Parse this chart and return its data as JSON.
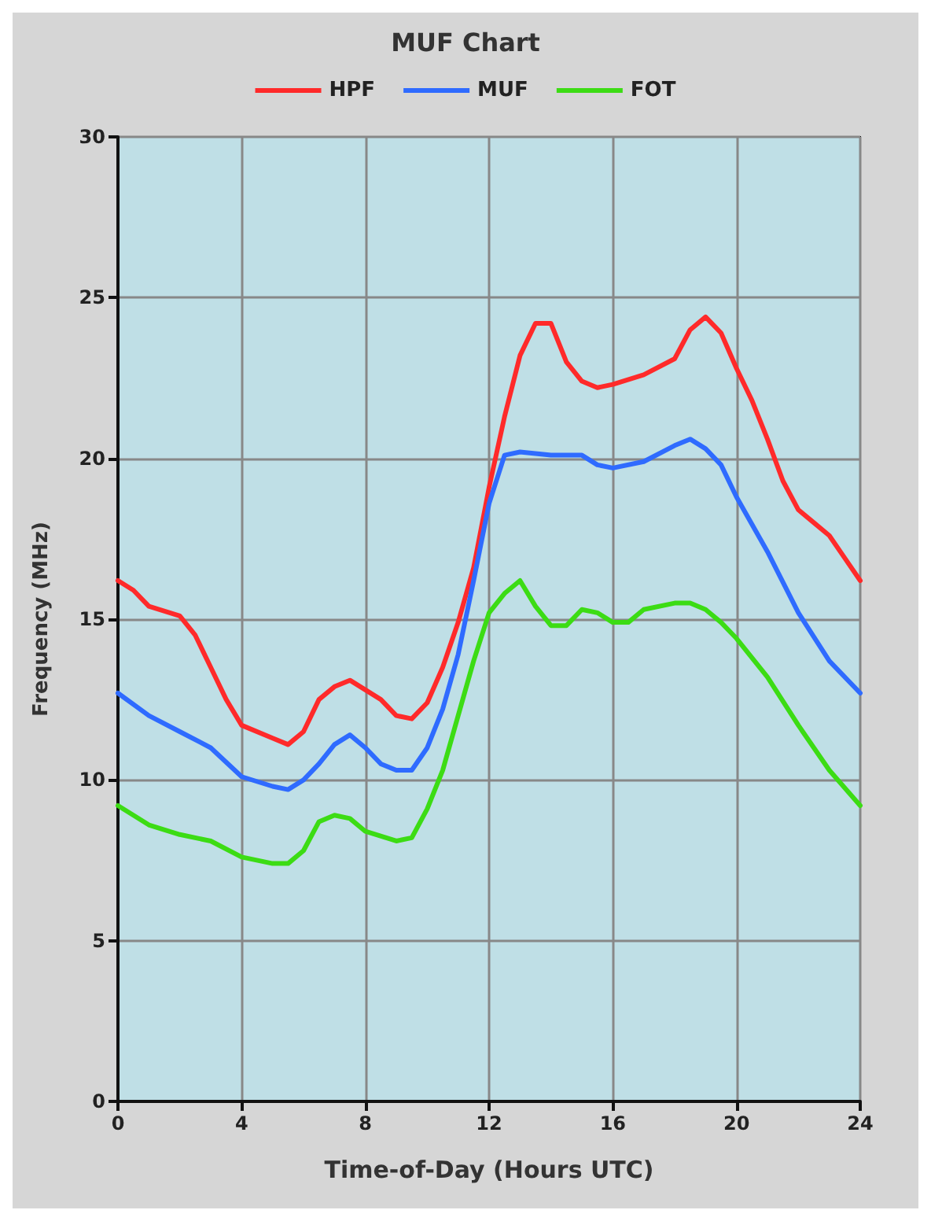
{
  "chart_data": {
    "type": "line",
    "title": "MUF Chart",
    "xlabel": "Time-of-Day (Hours UTC)",
    "ylabel": "Frequency (MHz)",
    "xlim": [
      0,
      24
    ],
    "xticks": [
      0,
      4,
      8,
      12,
      16,
      20,
      24
    ],
    "ylim": [
      0,
      30
    ],
    "yticks": [
      0,
      5,
      10,
      15,
      20,
      25,
      30
    ],
    "grid": true,
    "legend": "top",
    "marker": "none",
    "line_style": "solid",
    "series": [
      {
        "name": "HPF",
        "color": "#ff2a2a",
        "x": [
          0,
          0.5,
          1,
          2,
          2.5,
          3,
          3.5,
          4,
          5,
          5.5,
          6,
          6.5,
          7,
          7.5,
          8,
          8.5,
          9,
          9.5,
          10,
          10.5,
          11,
          11.5,
          12,
          12.5,
          13,
          13.5,
          14,
          14.5,
          15,
          15.5,
          16,
          17,
          18,
          18.5,
          19,
          19.5,
          20,
          20.5,
          21,
          21.5,
          22,
          22.5,
          23,
          23.5,
          24
        ],
        "values": [
          16.2,
          15.9,
          15.4,
          15.1,
          14.5,
          13.5,
          12.5,
          11.7,
          11.3,
          11.1,
          11.5,
          12.5,
          12.9,
          13.1,
          12.8,
          12.5,
          12.0,
          11.9,
          12.4,
          13.5,
          14.9,
          16.6,
          19.1,
          21.3,
          23.2,
          24.2,
          24.2,
          23.0,
          22.4,
          22.2,
          22.3,
          22.6,
          23.1,
          24.0,
          24.4,
          23.9,
          22.8,
          21.8,
          20.6,
          19.3,
          18.4,
          18.0,
          17.6,
          16.9,
          16.2
        ]
      },
      {
        "name": "MUF",
        "color": "#2f6bff",
        "x": [
          0,
          1,
          2,
          3,
          4,
          5,
          5.5,
          6,
          6.5,
          7,
          7.5,
          8,
          8.5,
          9,
          9.5,
          10,
          10.5,
          11,
          11.5,
          12,
          12.5,
          13,
          14,
          15,
          15.5,
          16,
          17,
          18,
          18.5,
          19,
          19.5,
          20,
          21,
          22,
          23,
          24
        ],
        "values": [
          12.7,
          12.0,
          11.5,
          11.0,
          10.1,
          9.8,
          9.7,
          10.0,
          10.5,
          11.1,
          11.4,
          11.0,
          10.5,
          10.3,
          10.3,
          11.0,
          12.2,
          13.9,
          16.2,
          18.6,
          20.1,
          20.2,
          20.1,
          20.1,
          19.8,
          19.7,
          19.9,
          20.4,
          20.6,
          20.3,
          19.8,
          18.8,
          17.1,
          15.2,
          13.7,
          12.7
        ]
      },
      {
        "name": "FOT",
        "color": "#3cdc14",
        "x": [
          0,
          1,
          2,
          3,
          4,
          5,
          5.5,
          6,
          6.5,
          7,
          7.5,
          8,
          9,
          9.5,
          10,
          10.5,
          11,
          11.5,
          12,
          12.5,
          13,
          13.5,
          14,
          14.5,
          15,
          15.5,
          16,
          16.5,
          17,
          18,
          18.5,
          19,
          19.5,
          20,
          21,
          22,
          23,
          24
        ],
        "values": [
          9.2,
          8.6,
          8.3,
          8.1,
          7.6,
          7.4,
          7.4,
          7.8,
          8.7,
          8.9,
          8.8,
          8.4,
          8.1,
          8.2,
          9.1,
          10.3,
          12.0,
          13.7,
          15.2,
          15.8,
          16.2,
          15.4,
          14.8,
          14.8,
          15.3,
          15.2,
          14.9,
          14.9,
          15.3,
          15.5,
          15.5,
          15.3,
          14.9,
          14.4,
          13.2,
          11.7,
          10.3,
          9.2
        ]
      }
    ]
  }
}
